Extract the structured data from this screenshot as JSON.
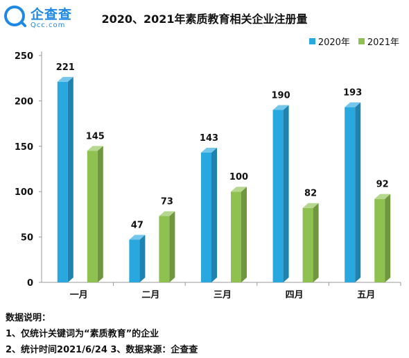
{
  "logo": {
    "name_cn": "企查查",
    "name_en": "Qcc.com"
  },
  "notes": {
    "heading": "数据说明：",
    "line1": "1、仅统计关键词为“素质教育”的企业",
    "line2": "2、统计时间2021/6/24   3、数据来源：企查查"
  },
  "chart_data": {
    "type": "bar",
    "title": "2020、2021年素质教育相关企业注册量",
    "categories": [
      "一月",
      "二月",
      "三月",
      "四月",
      "五月"
    ],
    "series": [
      {
        "name": "2020年",
        "values": [
          221,
          47,
          143,
          190,
          193
        ],
        "color": "#29a8e0"
      },
      {
        "name": "2021年",
        "values": [
          145,
          73,
          100,
          82,
          92
        ],
        "color": "#8fc151"
      }
    ],
    "ylim": [
      0,
      250
    ],
    "yticks": [
      0,
      50,
      100,
      150,
      200,
      250
    ],
    "xlabel": "",
    "ylabel": "",
    "grid": false,
    "legend": "top-right",
    "data_labels": true,
    "style": "3d-bar"
  }
}
